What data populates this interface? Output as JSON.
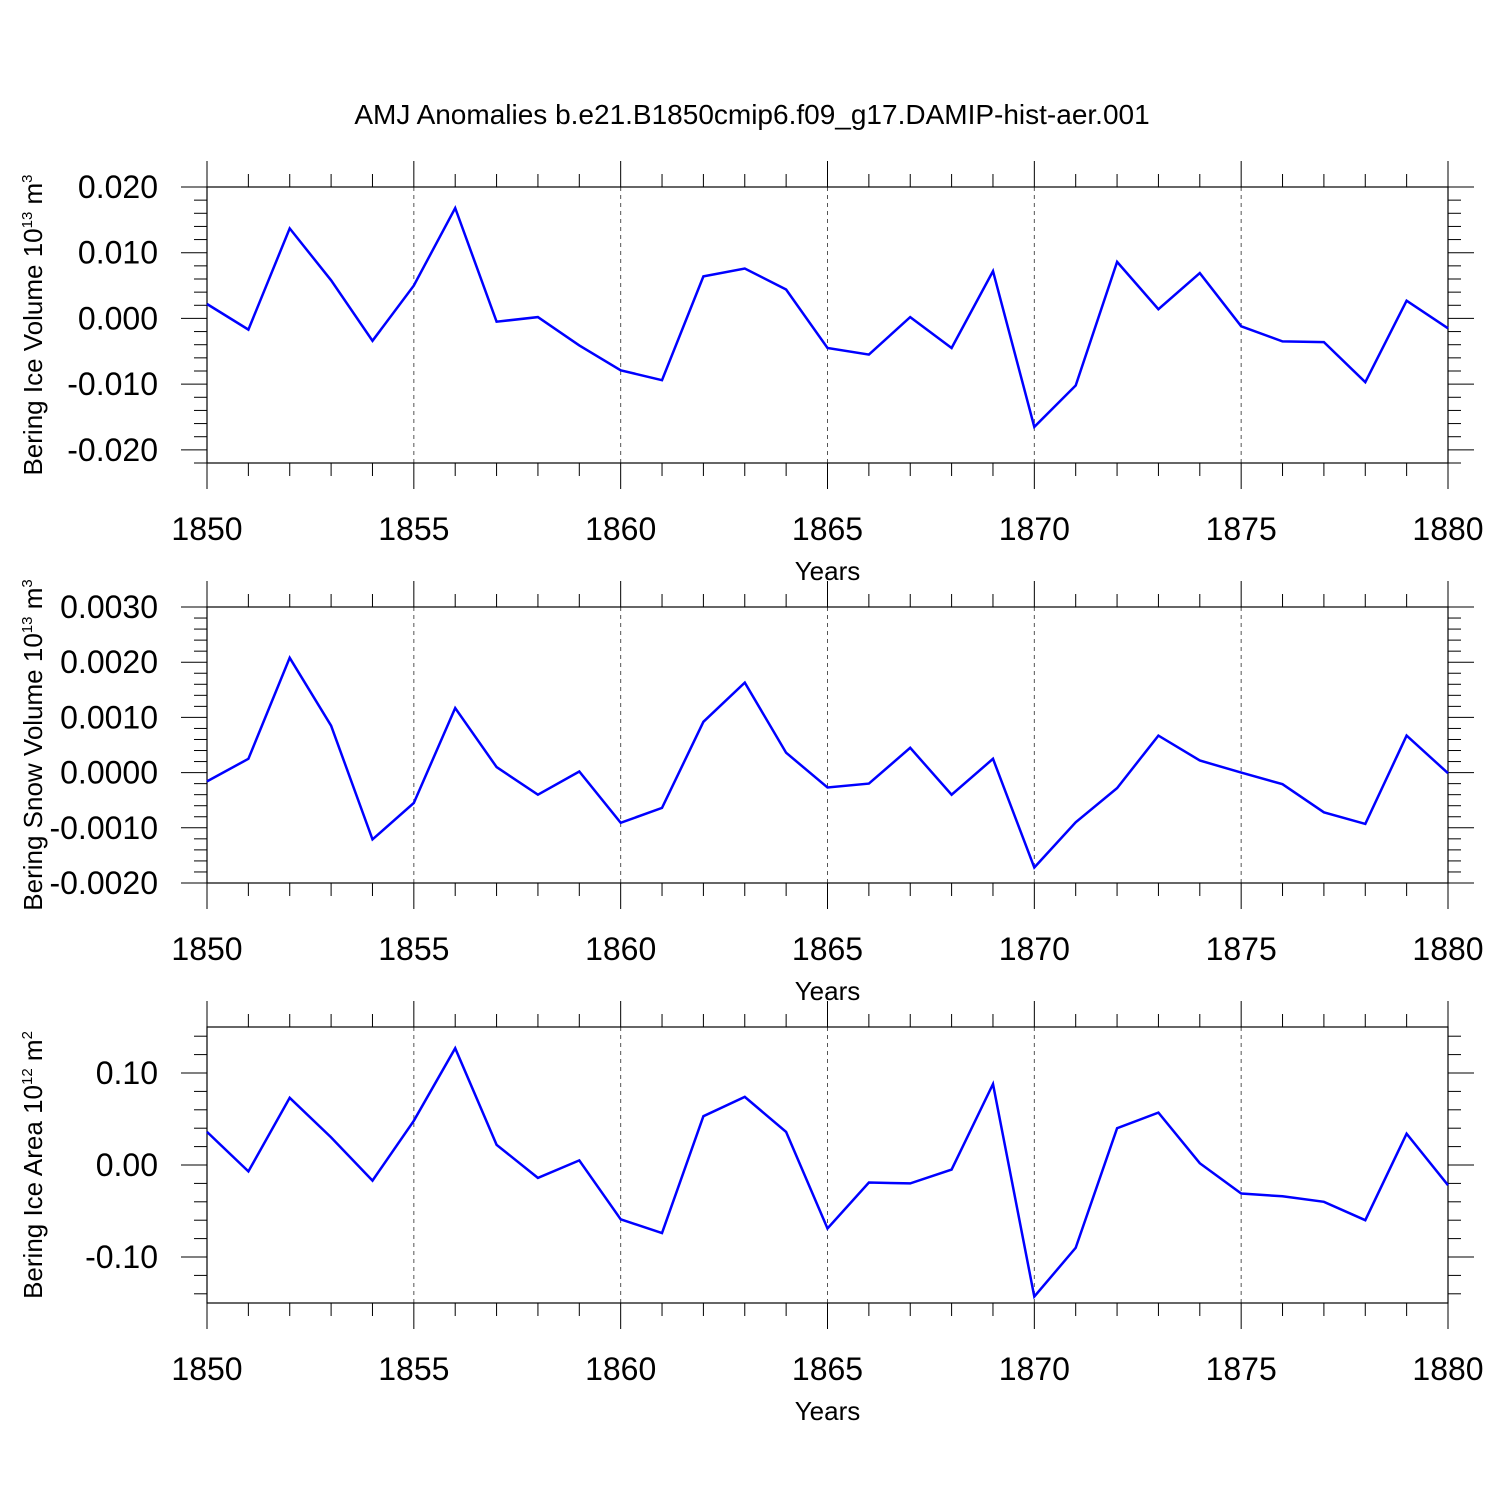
{
  "title": "AMJ Anomalies b.e21.B1850cmip6.f09_g17.DAMIP-hist-aer.001",
  "colors": {
    "series": "#0000ff",
    "axis": "#000000",
    "grid": "#555555"
  },
  "chart_data": [
    {
      "type": "line",
      "ylabel": "Bering Ice Volume 10",
      "ylabel_sup": "13",
      "ylabel_unit": " m",
      "ylabel_unit_sup": "3",
      "xlabel": "Years",
      "xlim": [
        1850,
        1880
      ],
      "ylim": [
        -0.022,
        0.02
      ],
      "xticks": [
        1850,
        1855,
        1860,
        1865,
        1870,
        1875,
        1880
      ],
      "xtick_labels": [
        "1850",
        "1855",
        "1860",
        "1865",
        "1870",
        "1875",
        "1880"
      ],
      "yticks": [
        -0.02,
        -0.01,
        0.0,
        0.01,
        0.02
      ],
      "ytick_labels": [
        "-0.020",
        "-0.010",
        "0.000",
        "0.010",
        "0.020"
      ],
      "yminor_step": 0.002,
      "grid": "vertical dashed at major x ticks",
      "x": [
        1850,
        1851,
        1852,
        1853,
        1854,
        1855,
        1856,
        1857,
        1858,
        1859,
        1860,
        1861,
        1862,
        1863,
        1864,
        1865,
        1866,
        1867,
        1868,
        1869,
        1870,
        1871,
        1872,
        1873,
        1874,
        1875,
        1876,
        1877,
        1878,
        1879,
        1880
      ],
      "values": [
        0.0022,
        -0.0017,
        0.0137,
        0.0058,
        -0.0034,
        0.005,
        0.0168,
        -0.0005,
        0.0002,
        -0.0041,
        -0.0079,
        -0.0094,
        0.0064,
        0.0076,
        0.0044,
        -0.0045,
        -0.0055,
        0.0002,
        -0.0045,
        0.0072,
        -0.0165,
        -0.0102,
        0.0086,
        0.0014,
        0.0069,
        -0.0012,
        -0.0035,
        -0.0036,
        -0.0097,
        0.0027,
        -0.0015
      ]
    },
    {
      "type": "line",
      "ylabel": "Bering Snow Volume 10",
      "ylabel_sup": "13",
      "ylabel_unit": " m",
      "ylabel_unit_sup": "3",
      "xlabel": "Years",
      "xlim": [
        1850,
        1880
      ],
      "ylim": [
        -0.002,
        0.003
      ],
      "xticks": [
        1850,
        1855,
        1860,
        1865,
        1870,
        1875,
        1880
      ],
      "xtick_labels": [
        "1850",
        "1855",
        "1860",
        "1865",
        "1870",
        "1875",
        "1880"
      ],
      "yticks": [
        -0.002,
        -0.001,
        0.0,
        0.001,
        0.002,
        0.003
      ],
      "ytick_labels": [
        "-0.0020",
        "-0.0010",
        "0.0000",
        "0.0010",
        "0.0020",
        "0.0030"
      ],
      "yminor_step": 0.0002,
      "grid": "vertical dashed at major x ticks",
      "x": [
        1850,
        1851,
        1852,
        1853,
        1854,
        1855,
        1856,
        1857,
        1858,
        1859,
        1860,
        1861,
        1862,
        1863,
        1864,
        1865,
        1866,
        1867,
        1868,
        1869,
        1870,
        1871,
        1872,
        1873,
        1874,
        1875,
        1876,
        1877,
        1878,
        1879,
        1880
      ],
      "values": [
        -0.00016,
        0.00025,
        0.00208,
        0.00085,
        -0.00121,
        -0.00055,
        0.00117,
        0.0001,
        -0.0004,
        2e-05,
        -0.00091,
        -0.00064,
        0.00092,
        0.00163,
        0.00036,
        -0.00027,
        -0.0002,
        0.00045,
        -0.0004,
        0.00025,
        -0.00172,
        -0.0009,
        -0.00028,
        0.00067,
        0.00022,
        0.0,
        -0.00021,
        -0.00072,
        -0.00093,
        0.00067,
        -1e-05
      ]
    },
    {
      "type": "line",
      "ylabel": "Bering Ice Area 10",
      "ylabel_sup": "12",
      "ylabel_unit": " m",
      "ylabel_unit_sup": "2",
      "xlabel": "Years",
      "xlim": [
        1850,
        1880
      ],
      "ylim": [
        -0.15,
        0.15
      ],
      "xticks": [
        1850,
        1855,
        1860,
        1865,
        1870,
        1875,
        1880
      ],
      "xtick_labels": [
        "1850",
        "1855",
        "1860",
        "1865",
        "1870",
        "1875",
        "1880"
      ],
      "yticks": [
        -0.1,
        0.0,
        0.1
      ],
      "ytick_labels": [
        "-0.10",
        "0.00",
        "0.10"
      ],
      "yminor_step": 0.02,
      "grid": "vertical dashed at major x ticks",
      "x": [
        1850,
        1851,
        1852,
        1853,
        1854,
        1855,
        1856,
        1857,
        1858,
        1859,
        1860,
        1861,
        1862,
        1863,
        1864,
        1865,
        1866,
        1867,
        1868,
        1869,
        1870,
        1871,
        1872,
        1873,
        1874,
        1875,
        1876,
        1877,
        1878,
        1879,
        1880
      ],
      "values": [
        0.036,
        -0.007,
        0.073,
        0.03,
        -0.017,
        0.048,
        0.127,
        0.022,
        -0.014,
        0.005,
        -0.059,
        -0.074,
        0.053,
        0.074,
        0.036,
        -0.069,
        -0.019,
        -0.02,
        -0.005,
        0.088,
        -0.143,
        -0.09,
        0.04,
        0.057,
        0.002,
        -0.031,
        -0.034,
        -0.04,
        -0.06,
        0.034,
        -0.022
      ]
    }
  ]
}
